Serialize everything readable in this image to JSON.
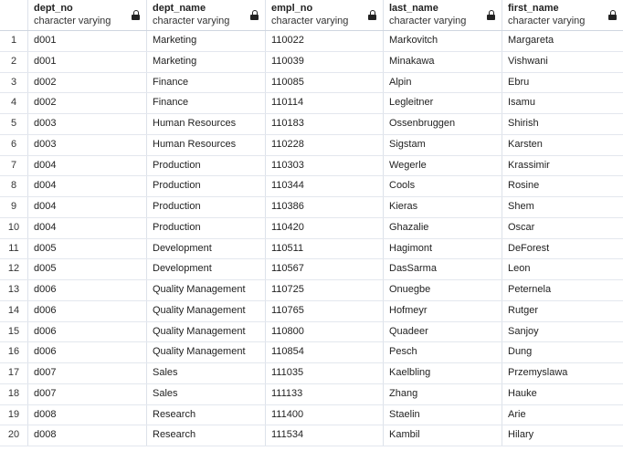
{
  "columns": [
    {
      "name": "dept_no",
      "type": "character varying"
    },
    {
      "name": "dept_name",
      "type": "character varying"
    },
    {
      "name": "empl_no",
      "type": "character varying"
    },
    {
      "name": "last_name",
      "type": "character varying"
    },
    {
      "name": "first_name",
      "type": "character varying"
    }
  ],
  "rows": [
    {
      "num": "1",
      "cells": [
        "d001",
        "Marketing",
        "110022",
        "Markovitch",
        "Margareta"
      ]
    },
    {
      "num": "2",
      "cells": [
        "d001",
        "Marketing",
        "110039",
        "Minakawa",
        "Vishwani"
      ]
    },
    {
      "num": "3",
      "cells": [
        "d002",
        "Finance",
        "110085",
        "Alpin",
        "Ebru"
      ]
    },
    {
      "num": "4",
      "cells": [
        "d002",
        "Finance",
        "110114",
        "Legleitner",
        "Isamu"
      ]
    },
    {
      "num": "5",
      "cells": [
        "d003",
        "Human Resources",
        "110183",
        "Ossenbruggen",
        "Shirish"
      ]
    },
    {
      "num": "6",
      "cells": [
        "d003",
        "Human Resources",
        "110228",
        "Sigstam",
        "Karsten"
      ]
    },
    {
      "num": "7",
      "cells": [
        "d004",
        "Production",
        "110303",
        "Wegerle",
        "Krassimir"
      ]
    },
    {
      "num": "8",
      "cells": [
        "d004",
        "Production",
        "110344",
        "Cools",
        "Rosine"
      ]
    },
    {
      "num": "9",
      "cells": [
        "d004",
        "Production",
        "110386",
        "Kieras",
        "Shem"
      ]
    },
    {
      "num": "10",
      "cells": [
        "d004",
        "Production",
        "110420",
        "Ghazalie",
        "Oscar"
      ]
    },
    {
      "num": "11",
      "cells": [
        "d005",
        "Development",
        "110511",
        "Hagimont",
        "DeForest"
      ]
    },
    {
      "num": "12",
      "cells": [
        "d005",
        "Development",
        "110567",
        "DasSarma",
        "Leon"
      ]
    },
    {
      "num": "13",
      "cells": [
        "d006",
        "Quality Management",
        "110725",
        "Onuegbe",
        "Peternela"
      ]
    },
    {
      "num": "14",
      "cells": [
        "d006",
        "Quality Management",
        "110765",
        "Hofmeyr",
        "Rutger"
      ]
    },
    {
      "num": "15",
      "cells": [
        "d006",
        "Quality Management",
        "110800",
        "Quadeer",
        "Sanjoy"
      ]
    },
    {
      "num": "16",
      "cells": [
        "d006",
        "Quality Management",
        "110854",
        "Pesch",
        "Dung"
      ]
    },
    {
      "num": "17",
      "cells": [
        "d007",
        "Sales",
        "111035",
        "Kaelbling",
        "Przemyslawa"
      ]
    },
    {
      "num": "18",
      "cells": [
        "d007",
        "Sales",
        "111133",
        "Zhang",
        "Hauke"
      ]
    },
    {
      "num": "19",
      "cells": [
        "d008",
        "Research",
        "111400",
        "Staelin",
        "Arie"
      ]
    },
    {
      "num": "20",
      "cells": [
        "d008",
        "Research",
        "111534",
        "Kambil",
        "Hilary"
      ]
    }
  ]
}
